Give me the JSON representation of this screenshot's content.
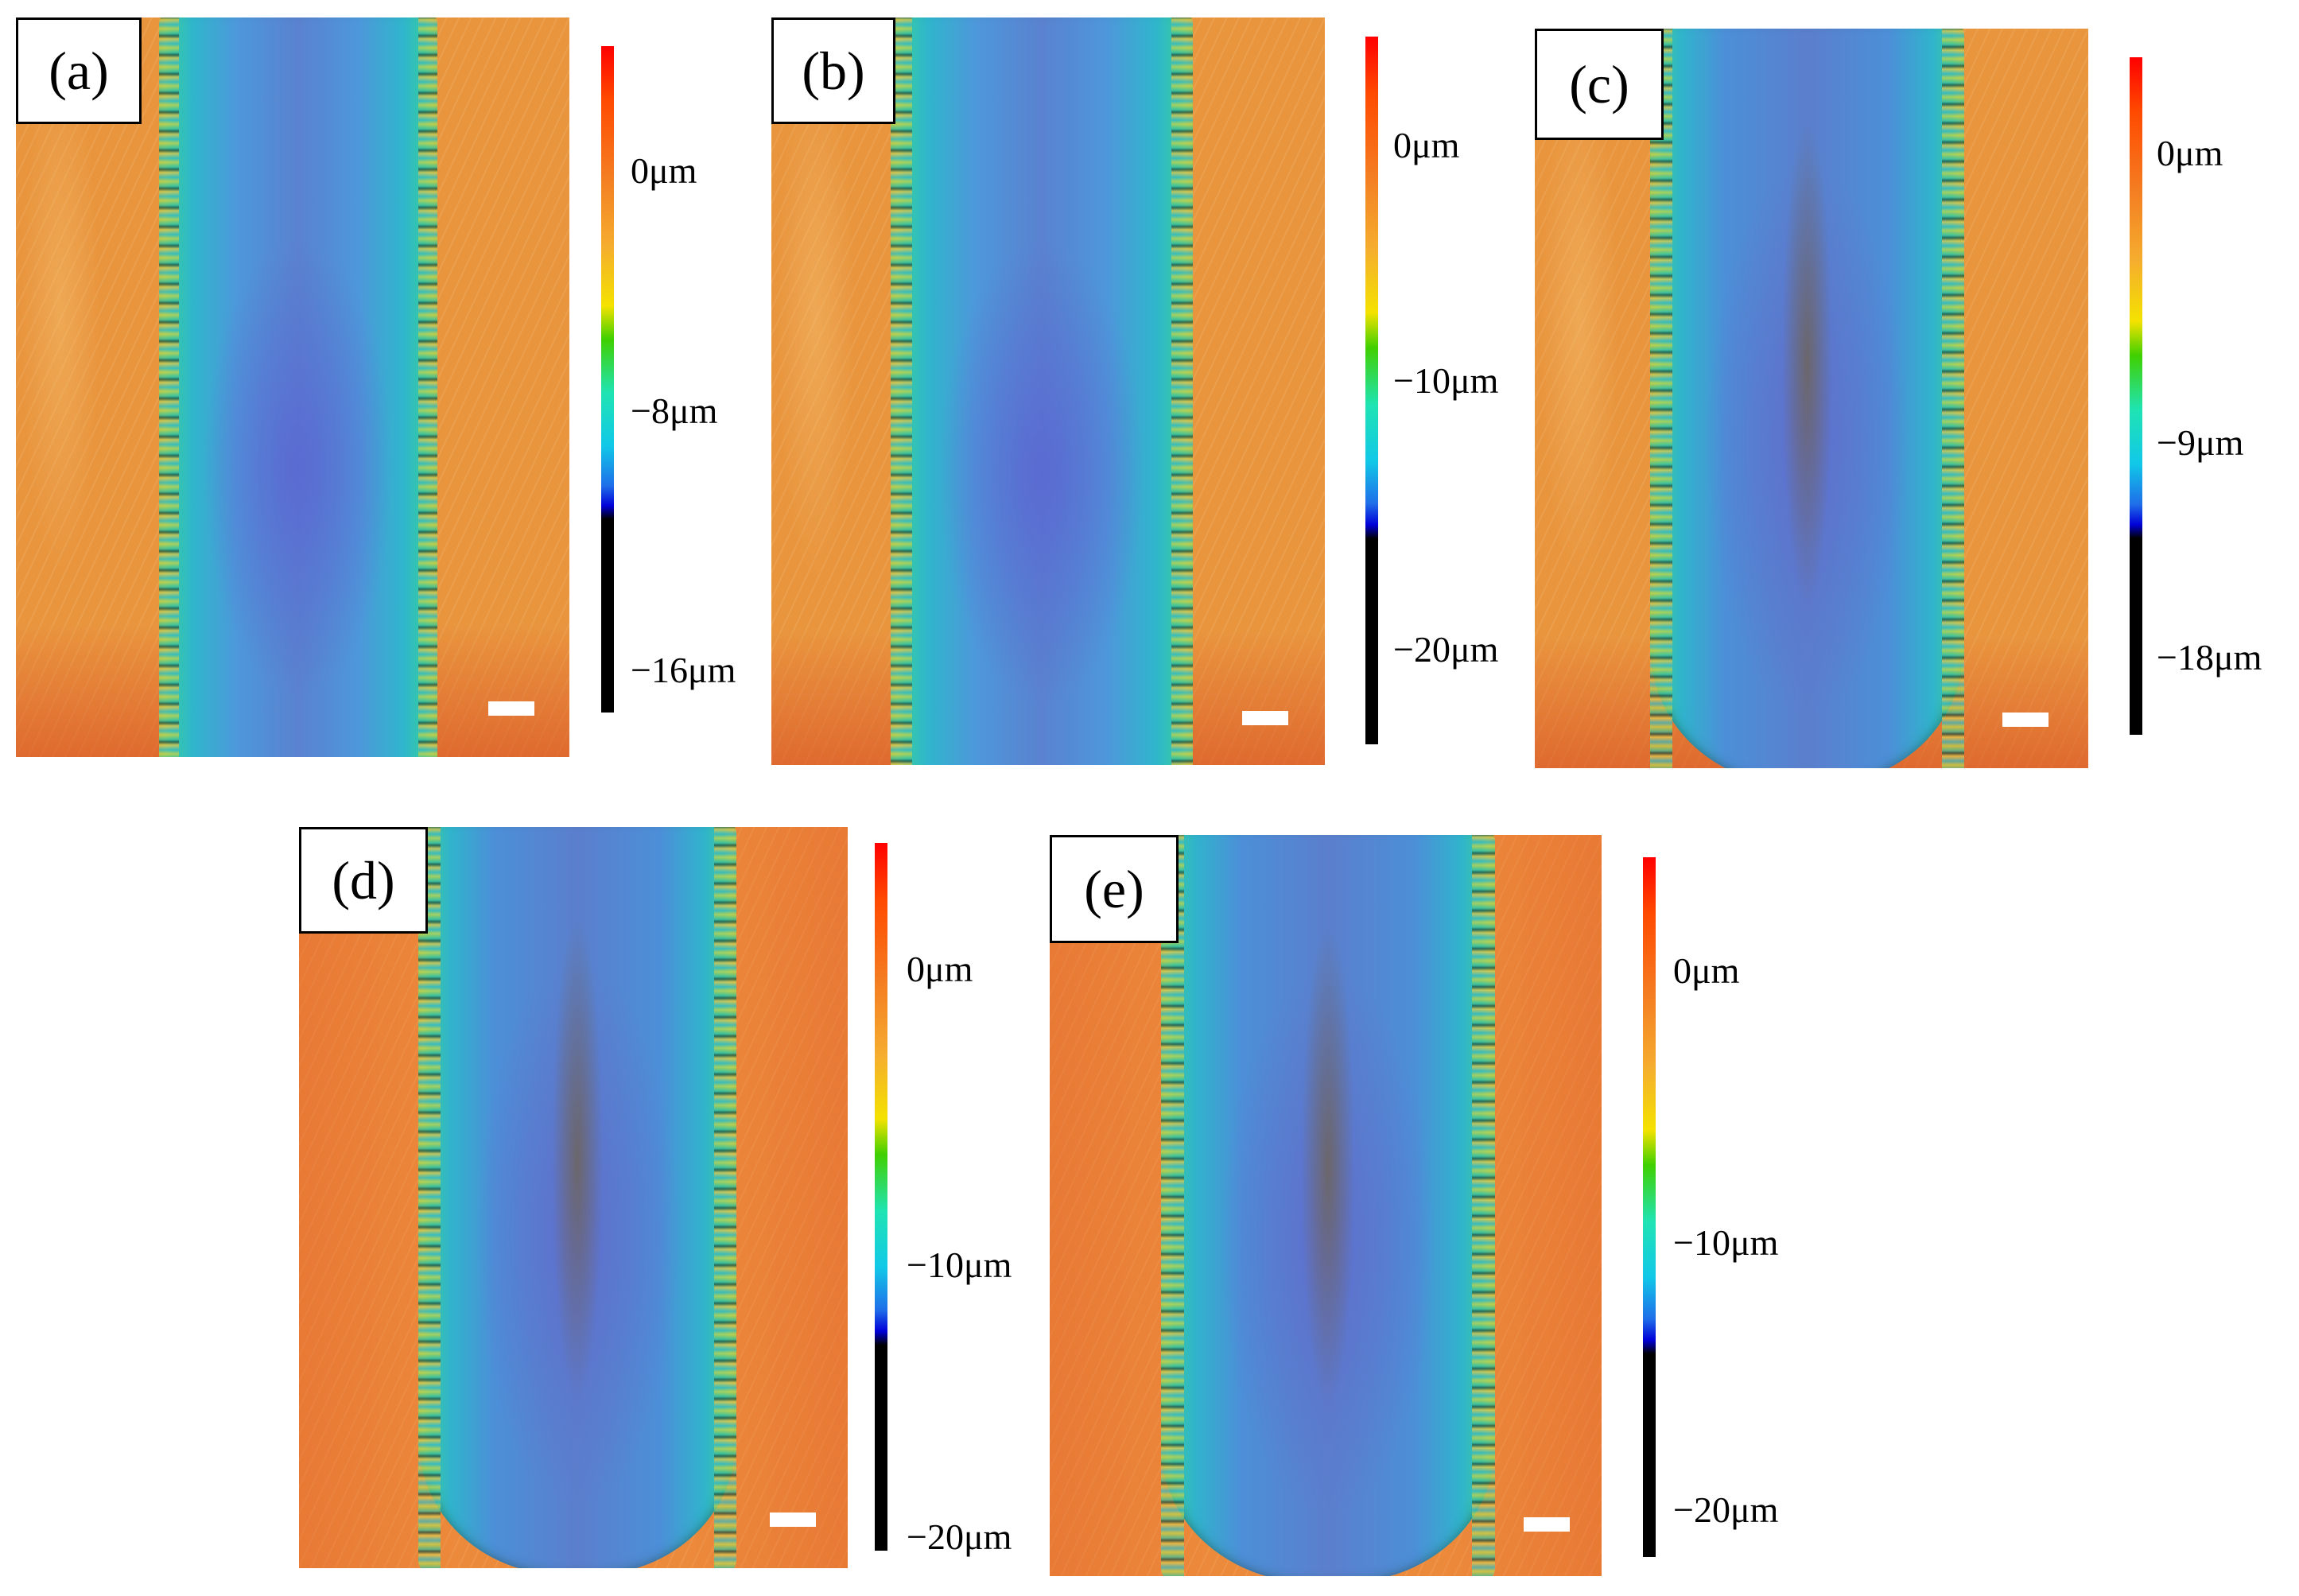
{
  "panels": [
    {
      "label": "(a)",
      "ticks": [
        "0μm",
        "−8μm",
        "−16μm"
      ]
    },
    {
      "label": "(b)",
      "ticks": [
        "0μm",
        "−10μm",
        "−20μm"
      ]
    },
    {
      "label": "(c)",
      "ticks": [
        "0μm",
        "−9μm",
        "−18μm"
      ]
    },
    {
      "label": "(d)",
      "ticks": [
        "0μm",
        "−10μm",
        "−20μm"
      ]
    },
    {
      "label": "(e)",
      "ticks": [
        "0μm",
        "−10μm",
        "−20μm"
      ]
    }
  ],
  "colors": {
    "substrate": "#e9953e",
    "groove_center": "#5a82cf",
    "groove_edge": "#36c9a7",
    "colorbar_top": "#ff0000",
    "colorbar_bottom": "#000000"
  }
}
